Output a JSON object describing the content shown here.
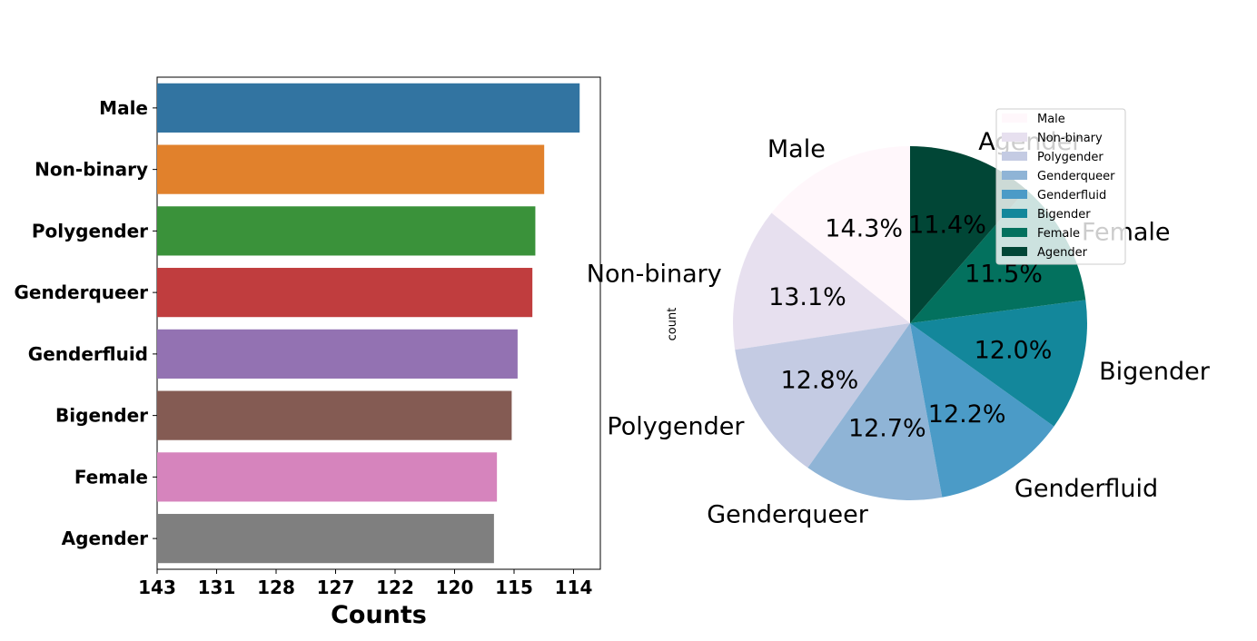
{
  "chart_data": [
    {
      "type": "bar",
      "orientation": "horizontal",
      "categories": [
        "Male",
        "Non-binary",
        "Polygender",
        "Genderqueer",
        "Genderfluid",
        "Bigender",
        "Female",
        "Agender"
      ],
      "values": [
        143,
        131,
        128,
        127,
        122,
        120,
        115,
        114
      ],
      "colors": [
        "#3274a1",
        "#e1812c",
        "#3a923a",
        "#c03d3e",
        "#9372b2",
        "#845b53",
        "#d684bd",
        "#7f7f7f"
      ],
      "xticks": [
        "143",
        "131",
        "128",
        "127",
        "122",
        "120",
        "115",
        "114"
      ],
      "xlabel": "Counts",
      "xlim": [
        0,
        150
      ]
    },
    {
      "type": "pie",
      "ylabel": "count",
      "labels": [
        "Male",
        "Non-binary",
        "Polygender",
        "Genderqueer",
        "Genderfluid",
        "Bigender",
        "Female",
        "Agender"
      ],
      "values": [
        143,
        131,
        128,
        127,
        122,
        120,
        115,
        114
      ],
      "percent_labels": [
        "14.3%",
        "13.1%",
        "12.8%",
        "12.7%",
        "12.2%",
        "12.0%",
        "11.5%",
        "11.4%"
      ],
      "colors": [
        "#fff7fb",
        "#e7e0ef",
        "#c4cbe3",
        "#8fb4d6",
        "#4b9bc7",
        "#13879b",
        "#03715e",
        "#014636"
      ],
      "start_angle_deg": 90,
      "direction": "counterclockwise",
      "legend": {
        "placement": "upper-right",
        "entries": [
          "Male",
          "Non-binary",
          "Polygender",
          "Genderqueer",
          "Genderfluid",
          "Bigender",
          "Female",
          "Agender"
        ]
      }
    }
  ]
}
